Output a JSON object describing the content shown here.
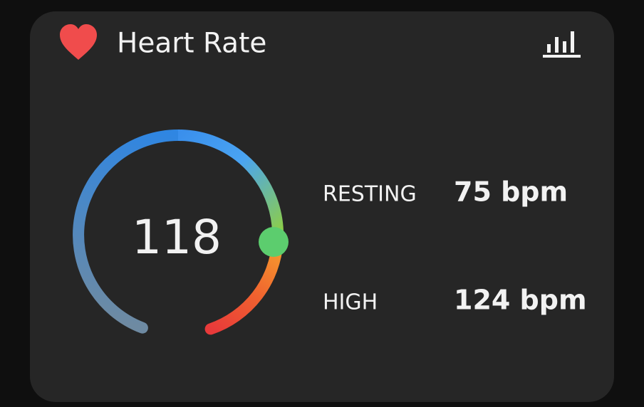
{
  "card": {
    "title": "Heart Rate",
    "value": 118,
    "stats": [
      {
        "label": "RESTING",
        "value": "75 bpm"
      },
      {
        "label": "HIGH",
        "value": "124 bpm"
      }
    ]
  }
}
